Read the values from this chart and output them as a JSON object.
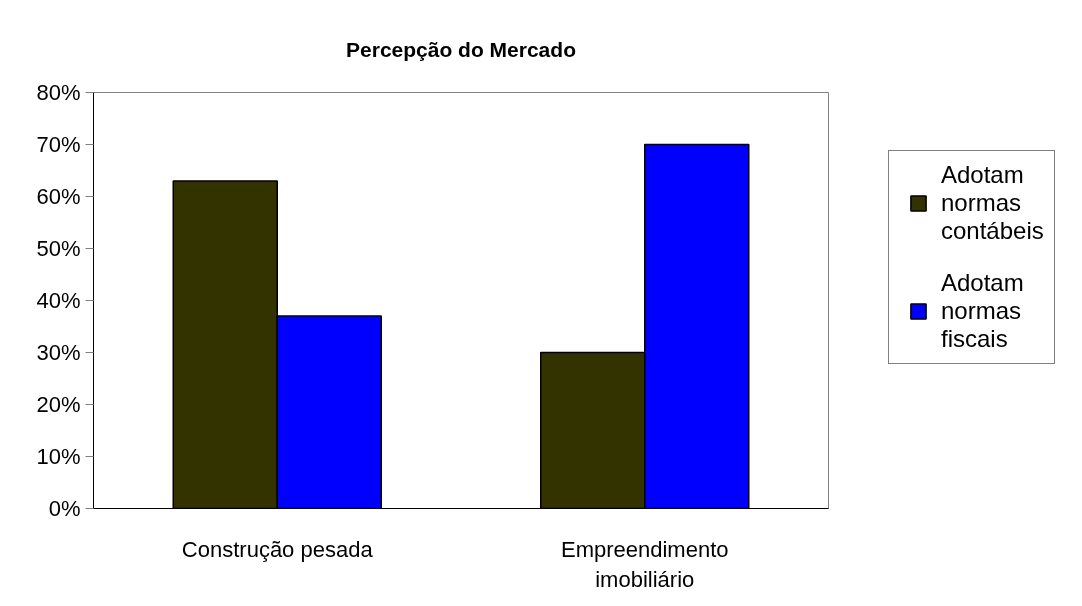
{
  "chart_data": {
    "type": "bar",
    "title": "Percepção do Mercado",
    "categories": [
      "Construção pesada",
      "Empreendimento imobiliário"
    ],
    "series": [
      {
        "name": "Adotam normas contábeis",
        "color": "#333300",
        "values": [
          63,
          30
        ]
      },
      {
        "name": "Adotam normas fiscais",
        "color": "#0000ff",
        "values": [
          37,
          70
        ]
      }
    ],
    "ylim": [
      0,
      80
    ],
    "yticks": [
      {
        "value": 0,
        "label": "0%"
      },
      {
        "value": 10,
        "label": "10%"
      },
      {
        "value": 20,
        "label": "20%"
      },
      {
        "value": 30,
        "label": "30%"
      },
      {
        "value": 40,
        "label": "40%"
      },
      {
        "value": 50,
        "label": "50%"
      },
      {
        "value": 60,
        "label": "60%"
      },
      {
        "value": 70,
        "label": "70%"
      },
      {
        "value": 80,
        "label": "80%"
      }
    ],
    "grid": false,
    "legend": "right"
  }
}
